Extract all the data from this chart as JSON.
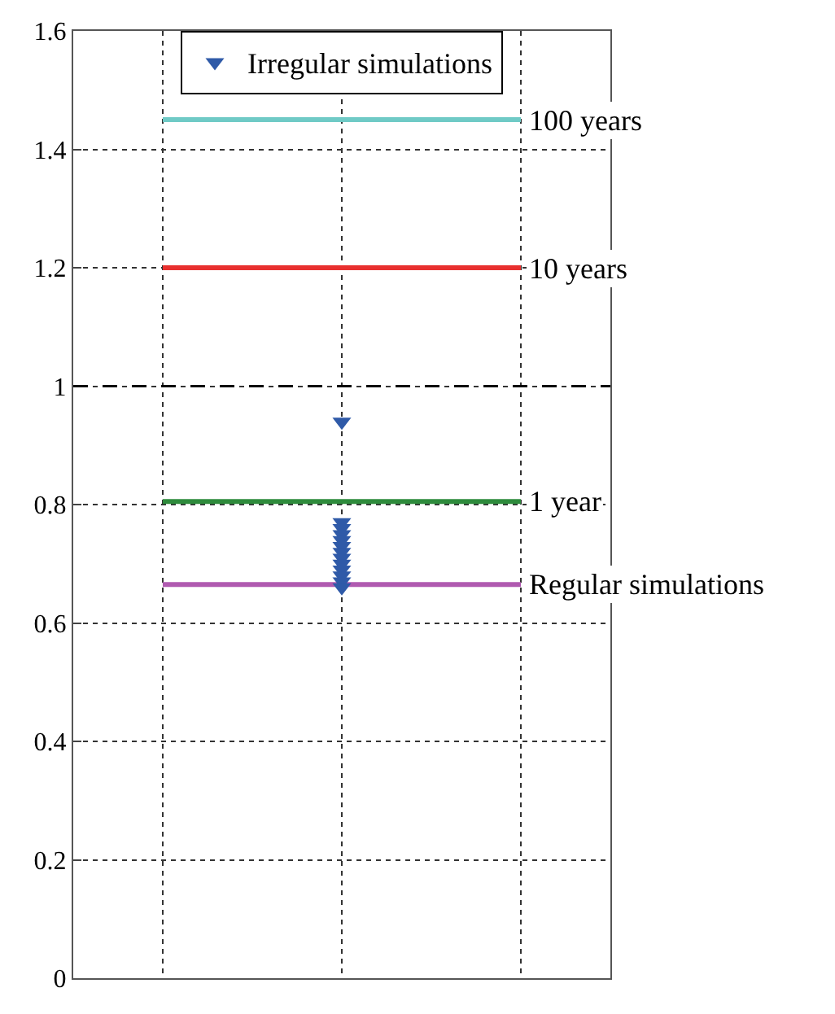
{
  "chart_data": {
    "type": "line",
    "categories": [
      null,
      null,
      null
    ],
    "ylim": [
      0,
      1.6
    ],
    "yticks": [
      0,
      0.2,
      0.4,
      0.6,
      0.8,
      1,
      1.2,
      1.4,
      1.6
    ],
    "tick_labels": "y",
    "grid": true,
    "legend": "top",
    "line_style": "solid",
    "marker": "none",
    "series": [
      {
        "name": "100 years",
        "color": "#6fcac6",
        "values": [
          1.45,
          1.45,
          1.45
        ]
      },
      {
        "name": "10 years",
        "color": "#e8302f",
        "values": [
          1.2,
          1.2,
          1.2
        ]
      },
      {
        "name": "1 year",
        "color": "#2e8b3c",
        "values": [
          0.805,
          0.805,
          0.805
        ]
      },
      {
        "name": "Regular simulations",
        "color": "#b05ab0",
        "values": [
          0.665,
          0.665,
          0.665
        ]
      },
      {
        "name": "Irregular simulations",
        "type": "scatter",
        "marker": "triangle",
        "color": "#2f5aa8",
        "values": [
          null,
          0.94,
          null
        ]
      },
      {
        "type": "scatter",
        "marker": "triangle",
        "color": "#2f5aa8",
        "values": [
          null,
          0.77,
          null
        ]
      },
      {
        "type": "scatter",
        "marker": "triangle",
        "color": "#2f5aa8",
        "values": [
          null,
          0.76,
          null
        ]
      },
      {
        "type": "scatter",
        "marker": "triangle",
        "color": "#2f5aa8",
        "values": [
          null,
          0.75,
          null
        ]
      },
      {
        "type": "scatter",
        "marker": "triangle",
        "color": "#2f5aa8",
        "values": [
          null,
          0.74,
          null
        ]
      },
      {
        "type": "scatter",
        "marker": "triangle",
        "color": "#2f5aa8",
        "values": [
          null,
          0.73,
          null
        ]
      },
      {
        "type": "scatter",
        "marker": "triangle",
        "color": "#2f5aa8",
        "values": [
          null,
          0.72,
          null
        ]
      },
      {
        "type": "scatter",
        "marker": "triangle",
        "color": "#2f5aa8",
        "values": [
          null,
          0.71,
          null
        ]
      },
      {
        "type": "scatter",
        "marker": "triangle",
        "color": "#2f5aa8",
        "values": [
          null,
          0.7,
          null
        ]
      },
      {
        "type": "scatter",
        "marker": "triangle",
        "color": "#2f5aa8",
        "values": [
          null,
          0.69,
          null
        ]
      },
      {
        "type": "scatter",
        "marker": "triangle",
        "color": "#2f5aa8",
        "values": [
          null,
          0.68,
          null
        ]
      },
      {
        "type": "scatter",
        "marker": "triangle",
        "color": "#2f5aa8",
        "values": [
          null,
          0.67,
          null
        ]
      },
      {
        "type": "scatter",
        "marker": "triangle",
        "color": "#2f5aa8",
        "values": [
          null,
          0.66,
          null
        ]
      }
    ],
    "ref_lines": [
      {
        "axis": "y",
        "value": 1,
        "color": "#000000",
        "line_style": "dashed"
      }
    ]
  }
}
